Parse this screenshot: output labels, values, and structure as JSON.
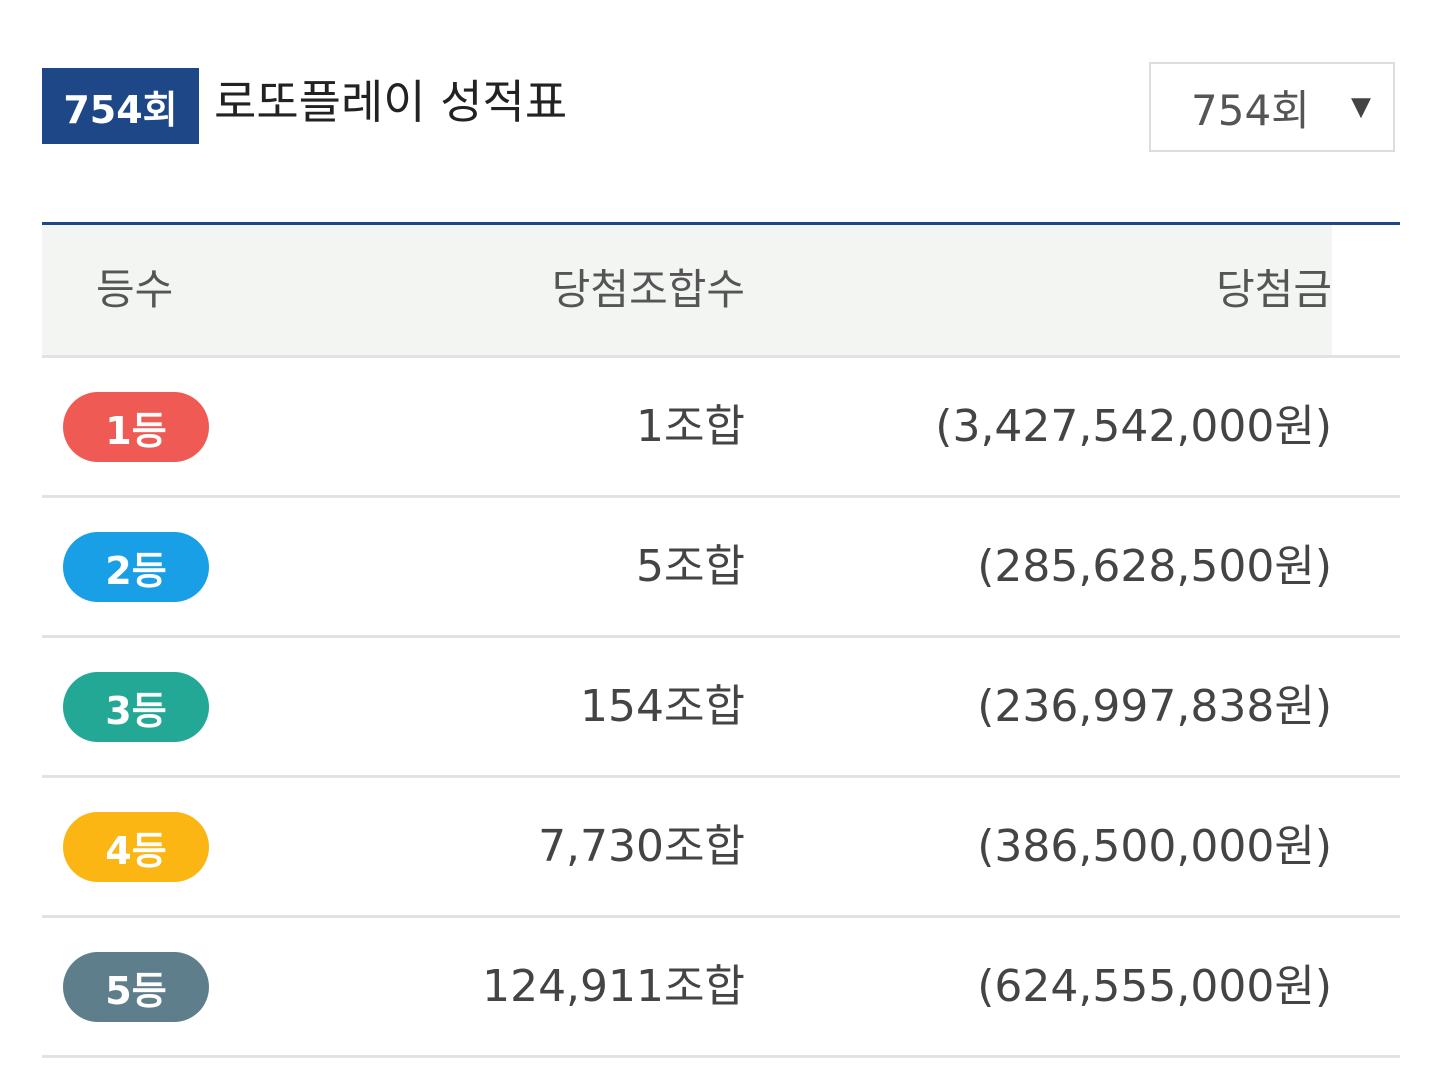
{
  "header": {
    "round_badge": "754회",
    "title": "로또플레이 성적표"
  },
  "round_select": {
    "value": "754회",
    "arrow_icon": "triangle-down-icon"
  },
  "table": {
    "columns": [
      "등수",
      "당첨조합수",
      "당첨금"
    ],
    "rows": [
      {
        "rank": "1등",
        "combos": "1조합",
        "prize": "(3,427,542,000원)",
        "color": "#f05a55"
      },
      {
        "rank": "2등",
        "combos": "5조합",
        "prize": "(285,628,500원)",
        "color": "#199fe6"
      },
      {
        "rank": "3등",
        "combos": "154조합",
        "prize": "(236,997,838원)",
        "color": "#22a895"
      },
      {
        "rank": "4등",
        "combos": "7,730조합",
        "prize": "(386,500,000원)",
        "color": "#fbb614"
      },
      {
        "rank": "5등",
        "combos": "124,911조합",
        "prize": "(624,555,000원)",
        "color": "#5f7e8c"
      }
    ]
  }
}
